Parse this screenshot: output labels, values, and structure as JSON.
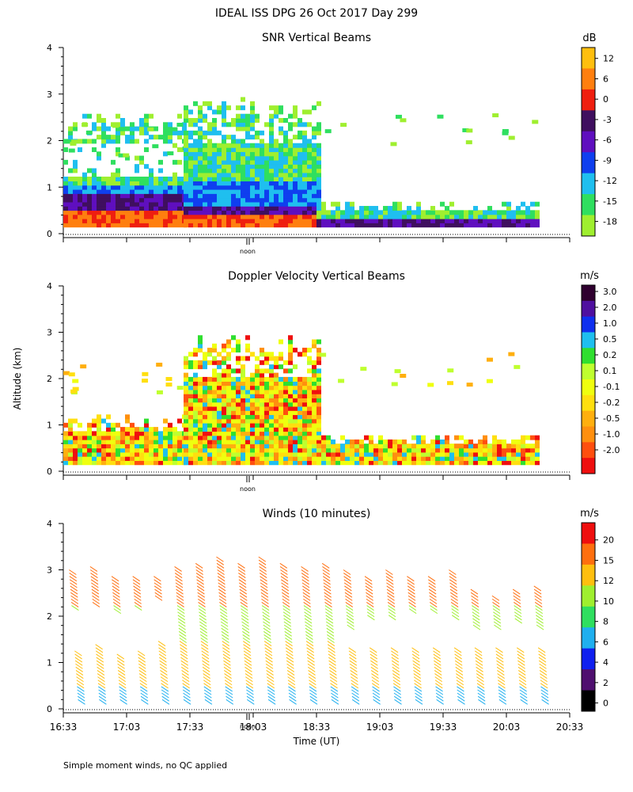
{
  "figure_title": "IDEAL ISS DPG  26 Oct 2017 Day 299",
  "y_axis_label": "Altitude (km)",
  "x_axis_label": "Time (UT)",
  "footer_note": "Simple moment winds, no QC applied",
  "noon_label": "noon",
  "colors": {
    "snr": [
      "#9fef2f",
      "#2fdf5f",
      "#1fbfef",
      "#0f3fef",
      "#5f0fbf",
      "#3f0f5f",
      "#ef1f0f",
      "#ff7f0f",
      "#ffbf0f"
    ],
    "doppler": [
      "#ef0f0f",
      "#ff4f0f",
      "#ff8f0f",
      "#ffaf0f",
      "#ffdf0f",
      "#efff0f",
      "#bfff2f",
      "#2fdf2f",
      "#1fbfef",
      "#0f2fef",
      "#4f0f9f",
      "#2f002f"
    ],
    "winds": [
      "#000000",
      "#4f0f6f",
      "#0f1fef",
      "#1fafef",
      "#2fdf5f",
      "#9fef2f",
      "#ffbf0f",
      "#ff6f0f",
      "#ef0f0f"
    ]
  },
  "chart_data": [
    {
      "id": "snr",
      "type": "heatmap",
      "title": "SNR Vertical Beams",
      "units": "dB",
      "ylabel": "Altitude (km)",
      "ylim": [
        0,
        4
      ],
      "yticks": [
        "0",
        "1",
        "2",
        "3",
        "4"
      ],
      "x_range_hours": [
        16.55,
        20.55
      ],
      "colorbar_labels": [
        "12",
        "6",
        "0",
        "-3",
        "-6",
        "-9",
        "-12",
        "-15",
        "-18"
      ],
      "regions": [
        {
          "t0": 16.55,
          "t1": 17.5,
          "top_km": 2.4,
          "low_layer_km": 0.8,
          "low_class": "0..-6",
          "upper_class": "-12..-18"
        },
        {
          "t0": 17.5,
          "t1": 18.55,
          "top_km": 2.7,
          "low_layer_km": 0.55,
          "low_class": "0..6",
          "upper_class": "-6..-15"
        },
        {
          "t0": 18.55,
          "t1": 20.3,
          "top_km": 0.6,
          "low_layer_km": 0.25,
          "low_class": "-3..-6",
          "upper_class": "-12..-15"
        }
      ]
    },
    {
      "id": "doppler",
      "type": "heatmap",
      "title": "Doppler Velocity Vertical Beams",
      "units": "m/s",
      "ylabel": "Altitude (km)",
      "ylim": [
        0,
        4
      ],
      "yticks": [
        "0",
        "1",
        "2",
        "3",
        "4"
      ],
      "x_range_hours": [
        16.55,
        20.55
      ],
      "colorbar_labels": [
        "3.0",
        "2.0",
        "1.0",
        "0.5",
        "0.2",
        "0.1",
        "-0.1",
        "-0.2",
        "-0.5",
        "-1.0",
        "-2.0"
      ],
      "regions": [
        {
          "t0": 16.55,
          "t1": 17.5,
          "top_km": 1.1,
          "dominant": "-0.2..0.1"
        },
        {
          "t0": 17.5,
          "t1": 18.55,
          "top_km": 2.7,
          "dominant": "-1.0..0.2"
        },
        {
          "t0": 18.55,
          "t1": 20.3,
          "top_km": 0.7,
          "dominant": "-0.2..0.1"
        }
      ]
    },
    {
      "id": "winds",
      "type": "scatter",
      "title": "Winds (10 minutes)",
      "units": "m/s",
      "ylabel": "Altitude (km)",
      "xlabel": "Time (UT)",
      "ylim": [
        0,
        4
      ],
      "yticks": [
        "0",
        "1",
        "2",
        "3",
        "4"
      ],
      "x_range_hours": [
        16.55,
        20.55
      ],
      "xticks": [
        "16:33",
        "17:03",
        "17:33",
        "18:03",
        "18:33",
        "19:03",
        "19:33",
        "20:03",
        "20:33"
      ],
      "colorbar_labels": [
        "20",
        "15",
        "12",
        "10",
        "8",
        "6",
        "4",
        "2",
        "0"
      ],
      "profiles": [
        {
          "time": "16:38",
          "top_km": 3.0,
          "low_gap_km": 1.3
        },
        {
          "time": "16:48",
          "top_km": 3.1,
          "low_gap_km": 1.4
        },
        {
          "time": "16:58",
          "top_km": 2.9,
          "low_gap_km": 1.2
        },
        {
          "time": "17:08",
          "top_km": 2.9,
          "low_gap_km": 1.3
        },
        {
          "time": "17:18",
          "top_km": 2.9,
          "low_gap_km": 1.5
        },
        {
          "time": "17:28",
          "top_km": 3.1,
          "low_gap_km": 0
        },
        {
          "time": "17:38",
          "top_km": 3.2,
          "low_gap_km": 0
        },
        {
          "time": "17:48",
          "top_km": 3.3,
          "low_gap_km": 0
        },
        {
          "time": "17:58",
          "top_km": 3.2,
          "low_gap_km": 0
        },
        {
          "time": "18:08",
          "top_km": 3.3,
          "low_gap_km": 0
        },
        {
          "time": "18:18",
          "top_km": 3.2,
          "low_gap_km": 0
        },
        {
          "time": "18:28",
          "top_km": 3.1,
          "low_gap_km": 0
        },
        {
          "time": "18:38",
          "top_km": 3.2,
          "low_gap_km": 0
        },
        {
          "time": "18:48",
          "top_km": 3.0,
          "low_gap_km": 1.8
        },
        {
          "time": "18:58",
          "top_km": 2.9,
          "low_gap_km": 2.0
        },
        {
          "time": "19:08",
          "top_km": 3.0,
          "low_gap_km": 2.0
        },
        {
          "time": "19:18",
          "top_km": 2.9,
          "low_gap_km": 2.1
        },
        {
          "time": "19:28",
          "top_km": 2.9,
          "low_gap_km": 2.1
        },
        {
          "time": "19:38",
          "top_km": 3.0,
          "low_gap_km": 2.0
        },
        {
          "time": "19:48",
          "top_km": 2.6,
          "low_gap_km": 1.8
        },
        {
          "time": "19:58",
          "top_km": 2.5,
          "low_gap_km": 1.8
        },
        {
          "time": "20:08",
          "top_km": 2.6,
          "low_gap_km": 1.9
        },
        {
          "time": "20:18",
          "top_km": 2.7,
          "low_gap_km": 1.8
        }
      ]
    }
  ]
}
